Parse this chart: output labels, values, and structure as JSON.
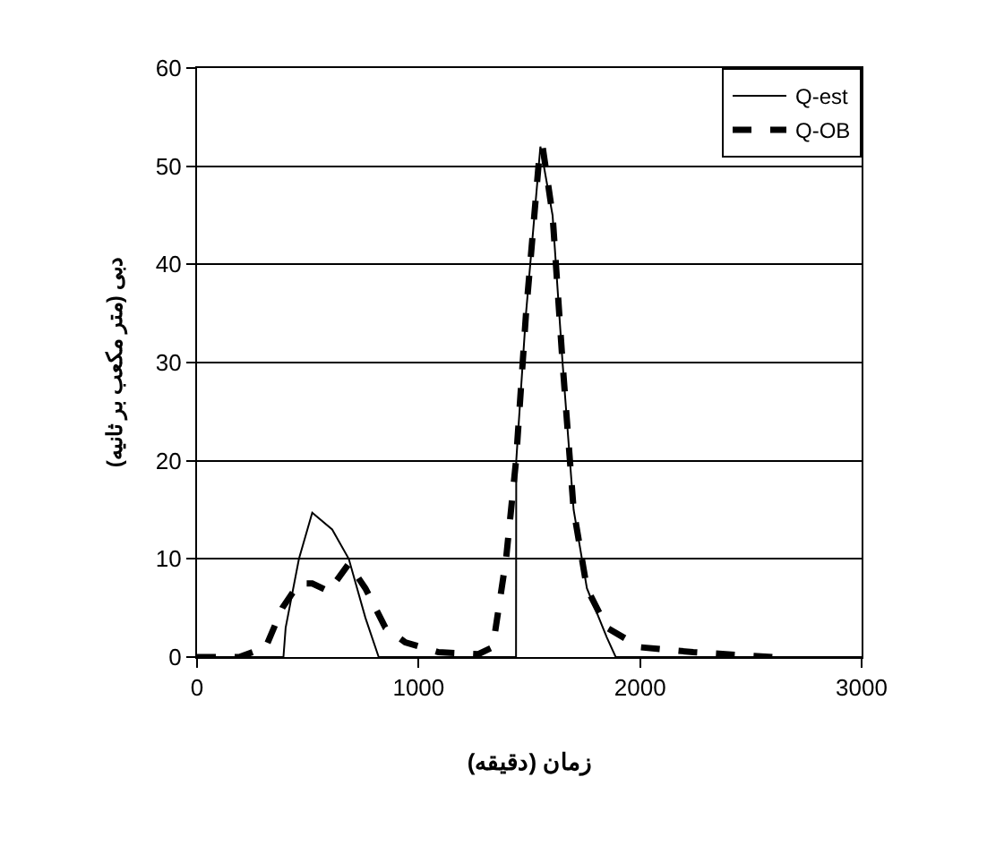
{
  "chart_data": {
    "type": "line",
    "xlabel": "زمان (دقیقه)",
    "ylabel": "دبی (متر مکعب بر ثانیه)",
    "xlim": [
      0,
      3000
    ],
    "xticks": [
      0,
      1000,
      2000,
      3000
    ],
    "ylim": [
      0,
      60
    ],
    "yticks": [
      0,
      10,
      20,
      30,
      40,
      50,
      60
    ],
    "grid": "y",
    "legend": "top right",
    "marker": "none",
    "series": [
      {
        "name": "Q-est",
        "color": "#000000",
        "line_style": "solid",
        "x": [
          0,
          390,
          400,
          460,
          520,
          610,
          685,
          760,
          820,
          1440,
          1441,
          1485,
          1550,
          1605,
          1650,
          1700,
          1760,
          1850,
          1890,
          3000
        ],
        "values": [
          0,
          0,
          3,
          10,
          14.7,
          13,
          10,
          4,
          0,
          0,
          20,
          35,
          52,
          45,
          30,
          15,
          7,
          2,
          0,
          0
        ]
      },
      {
        "name": "Q-OB",
        "color": "#000000",
        "line_style": "dashed",
        "x": [
          0,
          190,
          310,
          385,
          460,
          520,
          595,
          685,
          760,
          850,
          940,
          1090,
          1270,
          1335,
          1395,
          1440,
          1485,
          1545,
          1560,
          1605,
          1650,
          1700,
          1760,
          1850,
          2000,
          2240,
          2600
        ],
        "values": [
          0,
          0,
          1,
          5,
          7.5,
          7.5,
          6.7,
          9.5,
          7,
          3,
          1.5,
          0.5,
          0.3,
          1,
          10,
          20,
          35,
          51,
          52,
          45,
          30,
          15,
          7,
          3,
          1,
          0.5,
          0
        ]
      }
    ]
  }
}
